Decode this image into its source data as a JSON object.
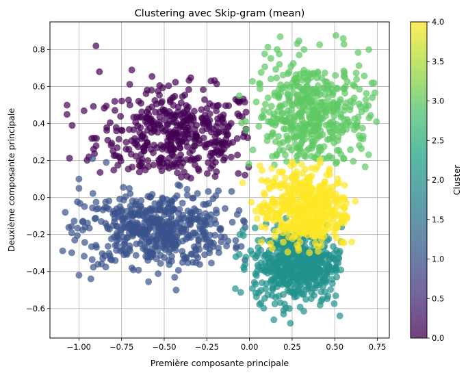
{
  "chart_data": {
    "type": "scatter",
    "title": "Clustering avec Skip-gram (mean)",
    "xlabel": "Première composante principale",
    "ylabel": "Deuxième composante principale",
    "xlim": [
      -1.17,
      0.82
    ],
    "ylim": [
      -0.76,
      0.95
    ],
    "x_ticks": [
      -1.0,
      -0.75,
      -0.5,
      -0.25,
      0.0,
      0.25,
      0.5,
      0.75
    ],
    "x_tick_labels": [
      "−1.00",
      "−0.75",
      "−0.50",
      "−0.25",
      "0.00",
      "0.25",
      "0.50",
      "0.75"
    ],
    "y_ticks": [
      -0.6,
      -0.4,
      -0.2,
      0.0,
      0.2,
      0.4,
      0.6,
      0.8
    ],
    "y_tick_labels": [
      "−0.6",
      "−0.4",
      "−0.2",
      "0.0",
      "0.2",
      "0.4",
      "0.6",
      "0.8"
    ],
    "grid": true,
    "point_alpha": 0.7,
    "colorbar": {
      "label": "Cluster",
      "range": [
        0.0,
        4.0
      ],
      "ticks": [
        0.0,
        0.5,
        1.0,
        1.5,
        2.0,
        2.5,
        3.0,
        3.5,
        4.0
      ],
      "tick_labels": [
        "0.0",
        "0.5",
        "1.0",
        "1.5",
        "2.0",
        "2.5",
        "3.0",
        "3.5",
        "4.0"
      ],
      "colormap": [
        "#440154",
        "#46327e",
        "#365c8d",
        "#277f8e",
        "#1fa187",
        "#4ac16d",
        "#a0da39",
        "#fde725"
      ]
    },
    "clusters": [
      {
        "cluster": 0,
        "color": "#440154",
        "count": 420,
        "center": [
          -0.42,
          0.33
        ],
        "spread": [
          0.24,
          0.13
        ],
        "xrange": [
          -1.1,
          0.0
        ],
        "yrange": [
          0.1,
          0.72
        ]
      },
      {
        "cluster": 1,
        "color": "#3b528b",
        "count": 520,
        "center": [
          -0.55,
          -0.17
        ],
        "spread": [
          0.22,
          0.1
        ],
        "xrange": [
          -1.1,
          -0.02
        ],
        "yrange": [
          -0.5,
          0.1
        ]
      },
      {
        "cluster": 2,
        "color": "#21918c",
        "count": 560,
        "center": [
          0.28,
          -0.36
        ],
        "spread": [
          0.13,
          0.1
        ],
        "xrange": [
          -0.12,
          0.55
        ],
        "yrange": [
          -0.68,
          -0.04
        ]
      },
      {
        "cluster": 3,
        "color": "#5ec962",
        "count": 450,
        "center": [
          0.36,
          0.44
        ],
        "spread": [
          0.17,
          0.15
        ],
        "xrange": [
          -0.05,
          0.75
        ],
        "yrange": [
          0.16,
          0.88
        ]
      },
      {
        "cluster": 4,
        "color": "#fde725",
        "count": 470,
        "center": [
          0.33,
          -0.06
        ],
        "spread": [
          0.13,
          0.11
        ],
        "xrange": [
          -0.03,
          0.58
        ],
        "yrange": [
          -0.3,
          0.22
        ]
      }
    ],
    "outliers": [
      {
        "cluster": 0,
        "x": -0.9,
        "y": 0.82
      },
      {
        "cluster": 0,
        "x": -0.69,
        "y": 0.69
      },
      {
        "cluster": 0,
        "x": -0.88,
        "y": 0.68
      },
      {
        "cluster": 0,
        "x": -1.07,
        "y": 0.5
      },
      {
        "cluster": 0,
        "x": -1.07,
        "y": 0.45
      },
      {
        "cluster": 0,
        "x": -1.04,
        "y": 0.39
      },
      {
        "cluster": 1,
        "x": -1.08,
        "y": -0.08
      },
      {
        "cluster": 1,
        "x": -1.0,
        "y": 0.1
      },
      {
        "cluster": 1,
        "x": -1.0,
        "y": 0.05
      },
      {
        "cluster": 1,
        "x": -0.92,
        "y": 0.21
      },
      {
        "cluster": 1,
        "x": -0.84,
        "y": 0.19
      },
      {
        "cluster": 1,
        "x": -1.0,
        "y": -0.42
      },
      {
        "cluster": 1,
        "x": -0.43,
        "y": -0.5
      },
      {
        "cluster": 1,
        "x": -0.93,
        "y": -0.44
      },
      {
        "cluster": 2,
        "x": 0.24,
        "y": -0.68
      },
      {
        "cluster": 2,
        "x": 0.2,
        "y": -0.61
      },
      {
        "cluster": 2,
        "x": 0.53,
        "y": -0.64
      },
      {
        "cluster": 2,
        "x": 0.42,
        "y": -0.56
      },
      {
        "cluster": 2,
        "x": -0.08,
        "y": -0.32
      },
      {
        "cluster": 3,
        "x": 0.18,
        "y": 0.87
      },
      {
        "cluster": 3,
        "x": 0.55,
        "y": 0.86
      },
      {
        "cluster": 3,
        "x": 0.7,
        "y": 0.8
      },
      {
        "cluster": 3,
        "x": 0.73,
        "y": 0.62
      },
      {
        "cluster": 3,
        "x": 0.72,
        "y": 0.54
      },
      {
        "cluster": 3,
        "x": 0.63,
        "y": 0.39
      },
      {
        "cluster": 3,
        "x": -0.06,
        "y": 0.55
      },
      {
        "cluster": 4,
        "x": 0.62,
        "y": -0.02
      },
      {
        "cluster": 4,
        "x": 0.6,
        "y": -0.24
      },
      {
        "cluster": 4,
        "x": -0.04,
        "y": 0.08
      }
    ]
  }
}
